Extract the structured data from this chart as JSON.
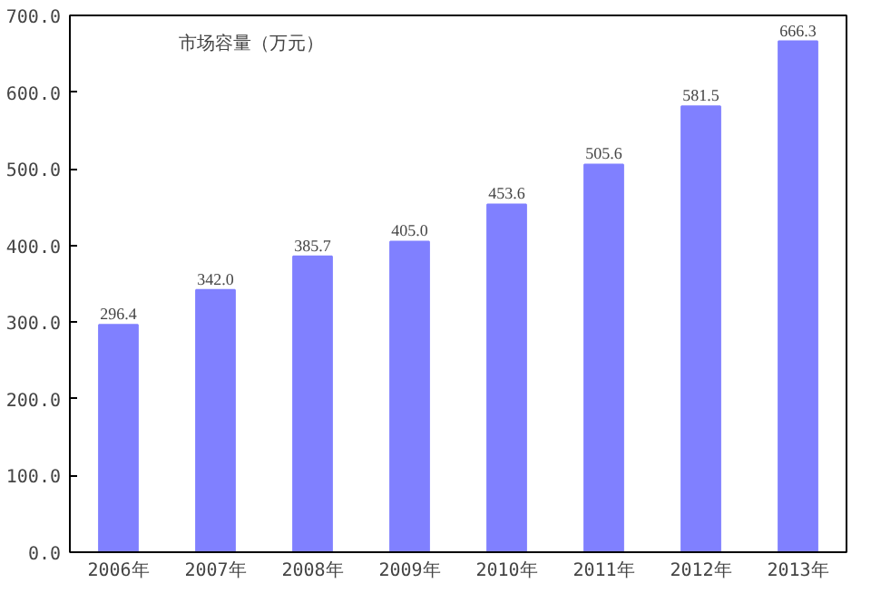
{
  "chart_data": {
    "type": "bar",
    "title": "市场容量（万元）",
    "categories": [
      "2006年",
      "2007年",
      "2008年",
      "2009年",
      "2010年",
      "2011年",
      "2012年",
      "2013年"
    ],
    "values": [
      296.4,
      342.0,
      385.7,
      405.0,
      453.6,
      505.6,
      581.5,
      666.3
    ],
    "value_labels": [
      "296.4",
      "342.0",
      "385.7",
      "405.0",
      "453.6",
      "505.6",
      "581.5",
      "666.3"
    ],
    "color": "#8080ff",
    "ylim": [
      0,
      700
    ],
    "yticks": [
      {
        "value": 0,
        "label": "0.0"
      },
      {
        "value": 100,
        "label": "100.0"
      },
      {
        "value": 200,
        "label": "200.0"
      },
      {
        "value": 300,
        "label": "300.0"
      },
      {
        "value": 400,
        "label": "400.0"
      },
      {
        "value": 500,
        "label": "500.0"
      },
      {
        "value": 600,
        "label": "600.0"
      },
      {
        "value": 700,
        "label": "700.0"
      }
    ],
    "grid": false
  }
}
